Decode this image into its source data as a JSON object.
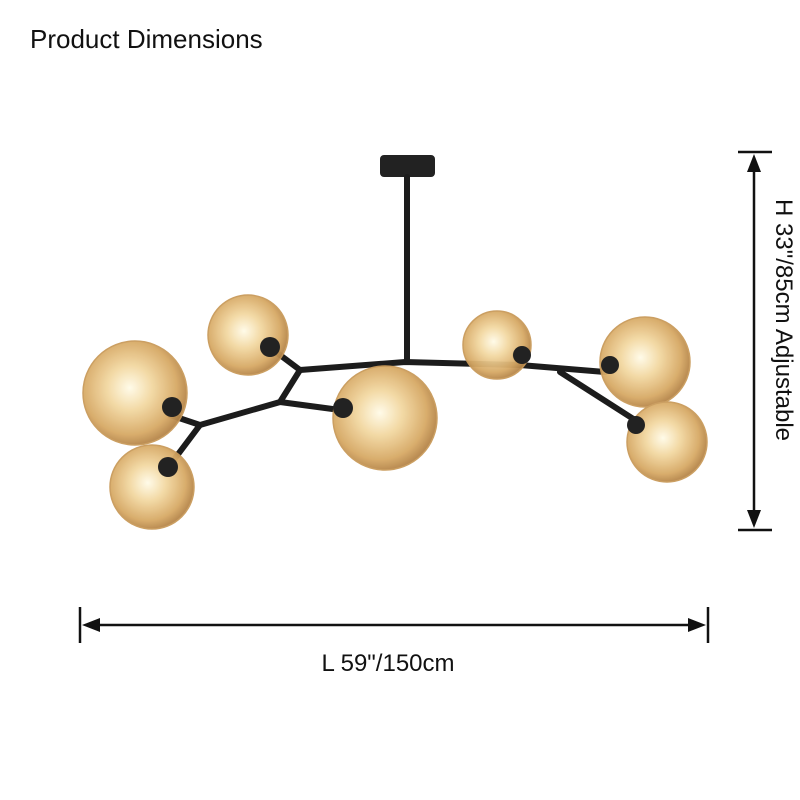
{
  "header": {
    "title": "Product Dimensions"
  },
  "dimensions": {
    "length": "L 59\"/150cm",
    "height": "H 33\"/85cm Adjustable"
  }
}
